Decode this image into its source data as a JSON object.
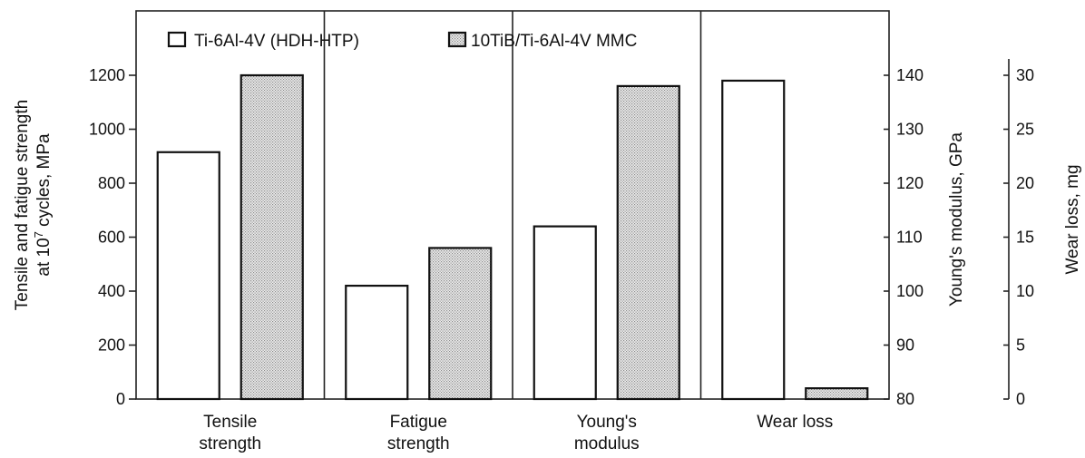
{
  "chart_data": {
    "type": "bar",
    "categories": [
      [
        "Tensile",
        "strength"
      ],
      [
        "Fatigue",
        "strength"
      ],
      [
        "Young's",
        "modulus"
      ],
      [
        "Wear loss"
      ]
    ],
    "series": [
      {
        "name": "Ti-6Al-4V (HDH-HTP)",
        "values": [
          915,
          420,
          112,
          29.5
        ],
        "style": "open"
      },
      {
        "name": "10TiB/Ti-6Al-4V MMC",
        "values": [
          1200,
          560,
          138,
          1
        ],
        "style": "hatched"
      }
    ],
    "value_axis": [
      "left",
      "left",
      "right1",
      "right2"
    ],
    "axes": {
      "left": {
        "title_line1": "Tensile and fatigue strength",
        "title_line2_pre": "at 10",
        "title_line2_sup": "7",
        "title_line2_post": " cycles, MPa",
        "ticks": [
          "0",
          "200",
          "400",
          "600",
          "800",
          "1000",
          "1200"
        ],
        "ylim": [
          0,
          1200
        ]
      },
      "right1": {
        "title": "Young's modulus, GPa",
        "ticks": [
          "80",
          "90",
          "100",
          "110",
          "120",
          "130",
          "140"
        ],
        "ylim": [
          80,
          140
        ]
      },
      "right2": {
        "title": "Wear loss, mg",
        "ticks": [
          "0",
          "5",
          "10",
          "15",
          "20",
          "25",
          "30"
        ],
        "ylim": [
          0,
          30
        ]
      }
    },
    "legend_position": "top",
    "grid": false
  }
}
